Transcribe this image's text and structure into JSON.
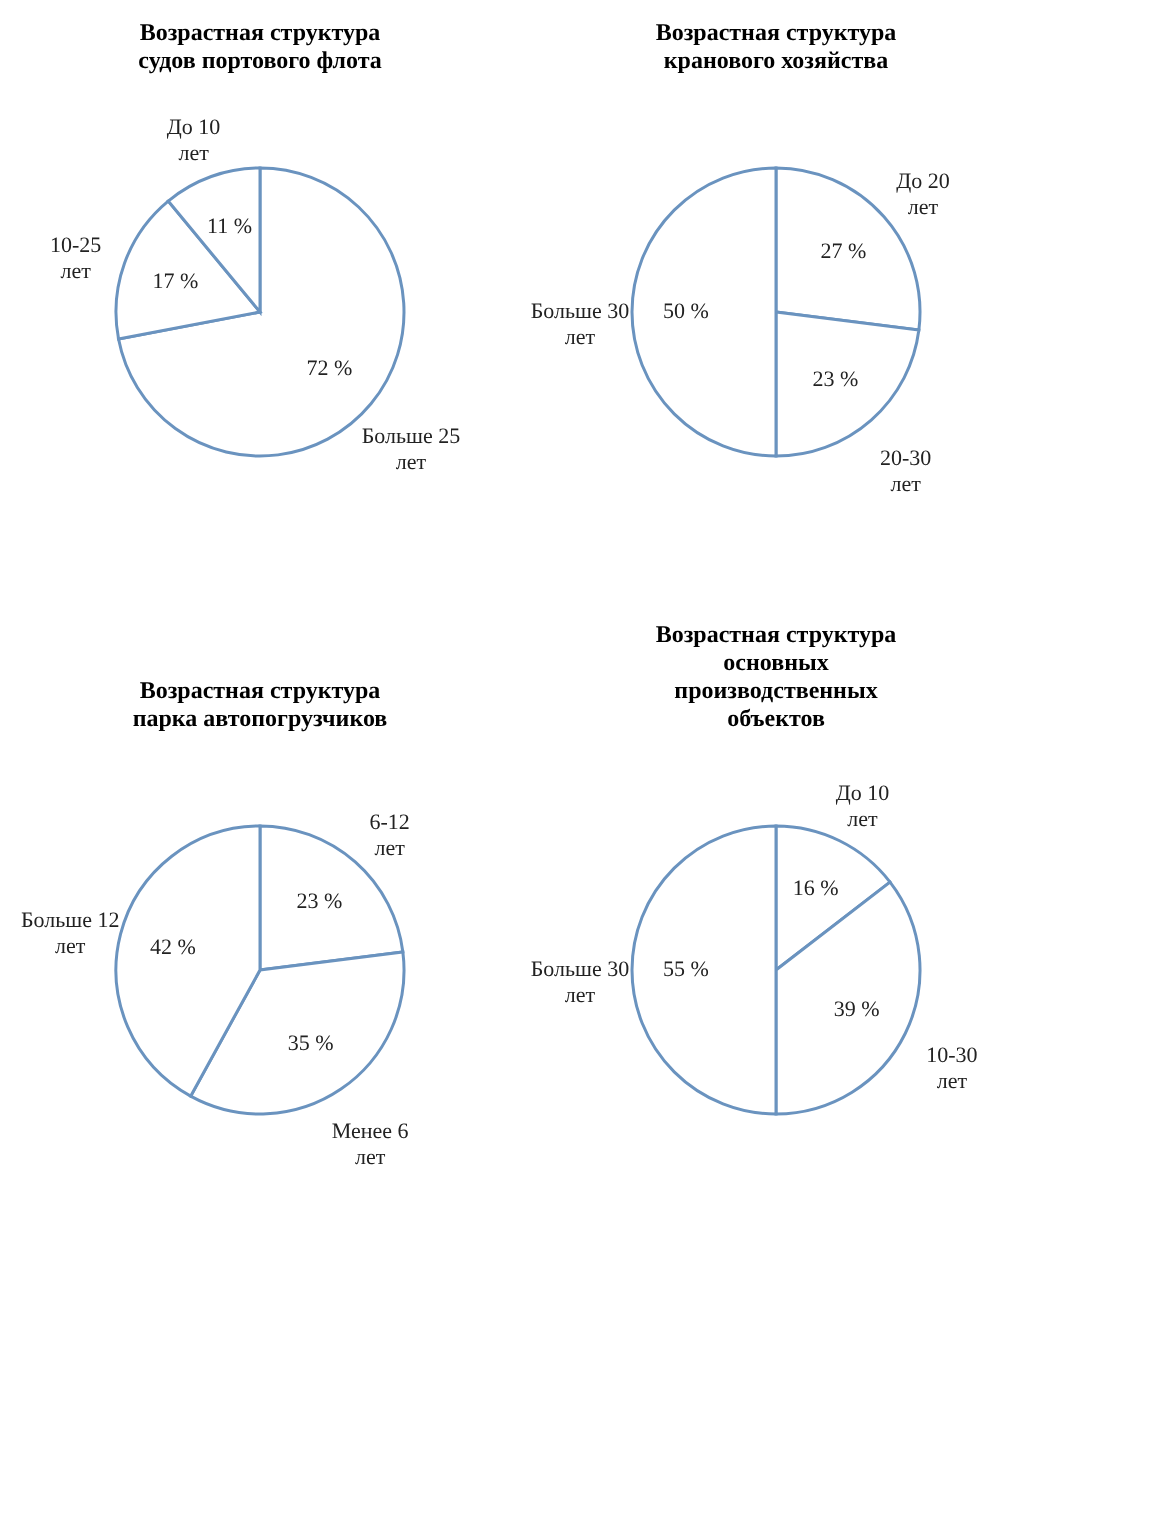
{
  "chart_data": [
    {
      "type": "pie",
      "title": "Возрастная структура судов портового флота",
      "categories": [
        "Больше 25 лет",
        "10-25 лет",
        "До 10 лет"
      ],
      "values": [
        72,
        17,
        11
      ],
      "value_labels": [
        "72 %",
        "17 %",
        "11 %"
      ],
      "colors": [
        "#ffffff",
        "#ffffff",
        "#ffffff"
      ],
      "legend": false
    },
    {
      "type": "pie",
      "title": "Возрастная структура кранового хозяйства",
      "categories": [
        "До 20 лет",
        "20-30 лет",
        "Больше 30 лет"
      ],
      "values": [
        27,
        23,
        50
      ],
      "value_labels": [
        "27 %",
        "23 %",
        "50 %"
      ],
      "colors": [
        "#ffffff",
        "#ffffff",
        "#ffffff"
      ],
      "legend": false
    },
    {
      "type": "pie",
      "title": "Возрастная структура парка автопогрузчиков",
      "categories": [
        "6-12 лет",
        "Менее 6 лет",
        "Больше 12 лет"
      ],
      "values": [
        23,
        35,
        42
      ],
      "value_labels": [
        "23 %",
        "35 %",
        "42 %"
      ],
      "colors": [
        "#ffffff",
        "#ffffff",
        "#ffffff"
      ],
      "legend": false
    },
    {
      "type": "pie",
      "title": "Возрастная структура основных производственных объектов",
      "categories": [
        "До 10 лет",
        "10-30 лет",
        "Больше 30 лет"
      ],
      "values": [
        16,
        39,
        55
      ],
      "value_labels": [
        "16 %",
        "39 %",
        "55 %"
      ],
      "colors": [
        "#ffffff",
        "#ffffff",
        "#ffffff"
      ],
      "legend": false
    }
  ]
}
